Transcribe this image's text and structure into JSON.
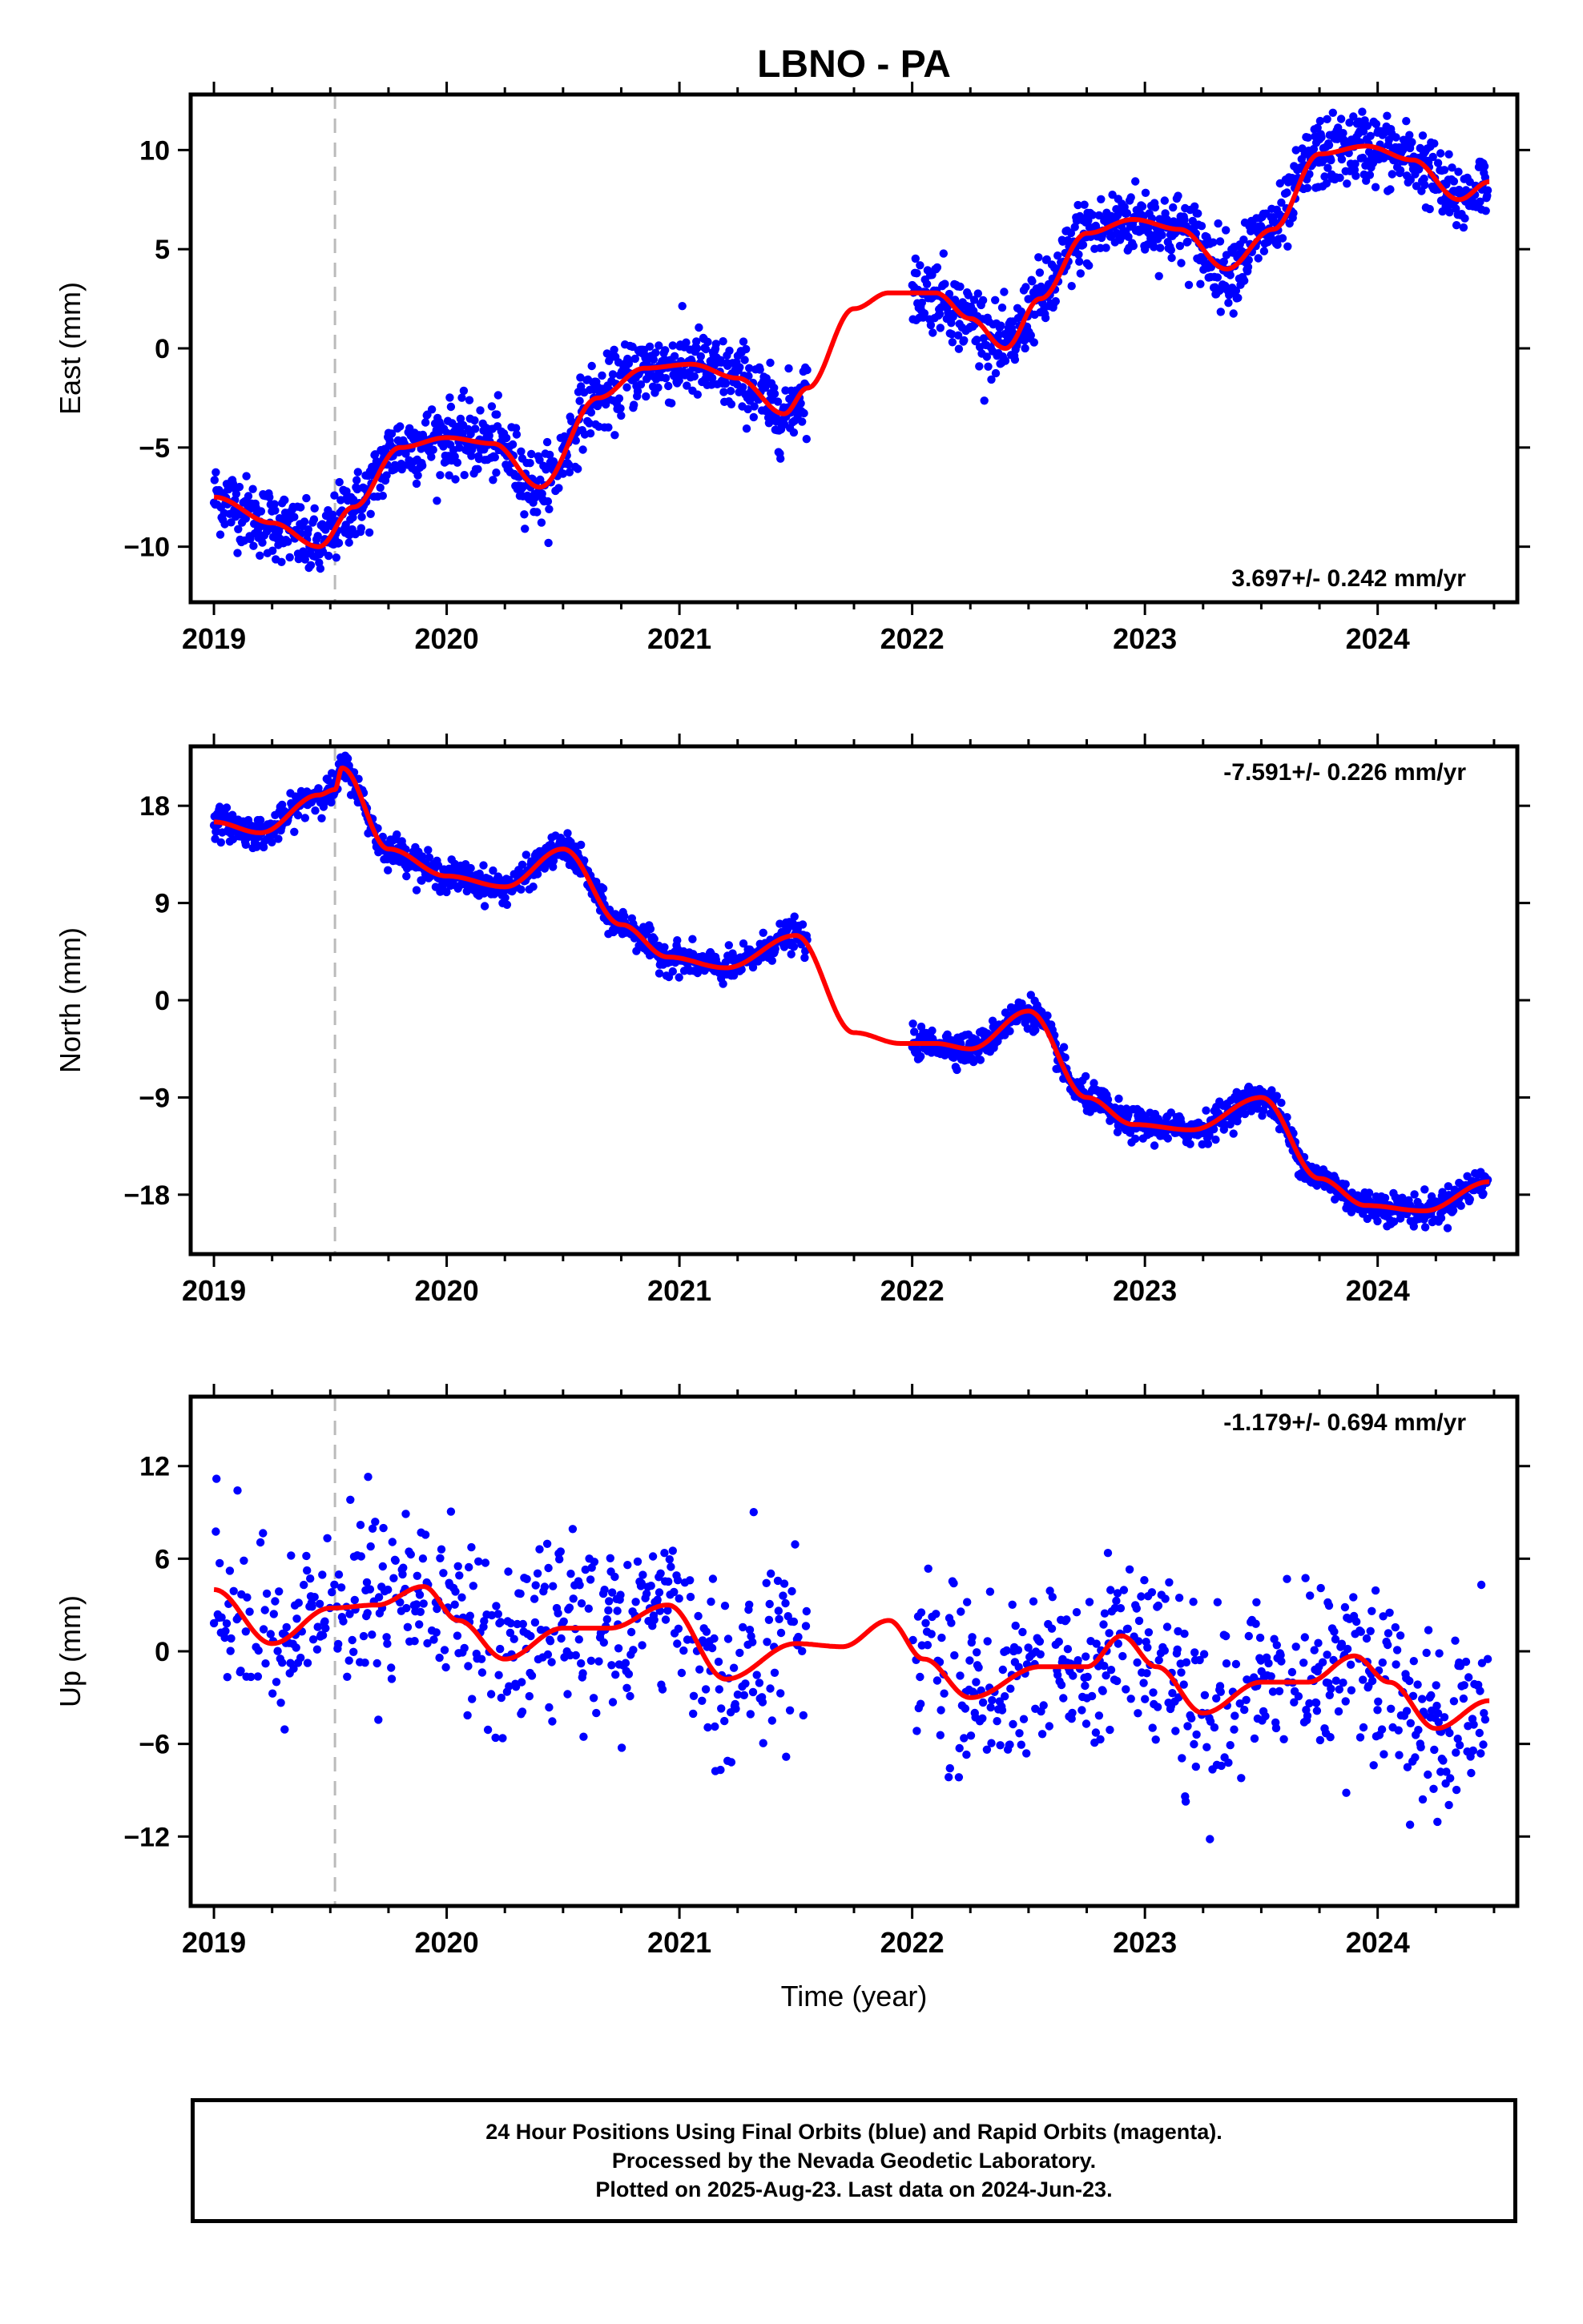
{
  "chart_data": {
    "title": "LBNO - PA",
    "xlabel": "Time (year)",
    "x_ticks": [
      "2019",
      "2020",
      "2021",
      "2022",
      "2023",
      "2024"
    ],
    "xlim": [
      2018.9,
      2024.6
    ],
    "reference_line_x": 2019.52,
    "colors": {
      "points": "#0000ff",
      "model": "#ff0000",
      "reference": "#bbbbbb"
    },
    "panels": [
      {
        "type": "scatter",
        "name": "east",
        "ylabel": "East (mm)",
        "ylim": [
          -12.8,
          12.8
        ],
        "y_ticks": [
          10,
          5,
          0,
          -5,
          -10
        ],
        "y_tick_labels": [
          "10",
          "5",
          "0",
          "−5",
          "−10"
        ],
        "rate_label": "3.697+/- 0.242 mm/yr",
        "rate_position": "bottom-right",
        "trend": {
          "rate": 3.697,
          "offset": -8.2,
          "amp1": 1.9,
          "phase1": 0.35,
          "amp2": 0.5,
          "phase2": 0.1,
          "noise": 0.9,
          "jump": 0
        },
        "model_x": [
          2019.0,
          2019.25,
          2019.45,
          2019.6,
          2019.8,
          2020.0,
          2020.2,
          2020.4,
          2020.65,
          2020.85,
          2021.05,
          2021.25,
          2021.45,
          2021.55,
          2021.75,
          2021.9,
          2022.1,
          2022.25,
          2022.4,
          2022.55,
          2022.75,
          2022.95,
          2023.15,
          2023.35,
          2023.55,
          2023.75,
          2023.95,
          2024.15,
          2024.35,
          2024.48
        ],
        "model_y": [
          -7.5,
          -8.8,
          -10.0,
          -8.0,
          -5.0,
          -4.5,
          -4.8,
          -7.0,
          -2.5,
          -1.0,
          -0.8,
          -1.5,
          -3.3,
          -2.0,
          2.0,
          2.8,
          2.8,
          1.5,
          0.0,
          2.5,
          5.8,
          6.5,
          6.0,
          4.0,
          6.0,
          9.8,
          10.2,
          9.5,
          7.5,
          8.4
        ]
      },
      {
        "type": "scatter",
        "name": "north",
        "ylabel": "North (mm)",
        "ylim": [
          -23.5,
          23.5
        ],
        "y_ticks": [
          18,
          9,
          0,
          -9,
          -18
        ],
        "y_tick_labels": [
          "18",
          "9",
          "0",
          "−9",
          "−18"
        ],
        "rate_label": "-7.591+/- 0.226 mm/yr",
        "rate_position": "top-right",
        "trend": {
          "rate": -7.591,
          "offset": 17.5,
          "amp1": 2.5,
          "phase1": 0.9,
          "amp2": 0.8,
          "phase2": 0.3,
          "noise": 0.7,
          "jump": 2.0
        },
        "model_x": [
          2019.0,
          2019.2,
          2019.45,
          2019.52,
          2019.55,
          2019.75,
          2020.0,
          2020.25,
          2020.5,
          2020.75,
          2020.95,
          2021.2,
          2021.5,
          2021.75,
          2021.95,
          2022.1,
          2022.25,
          2022.5,
          2022.75,
          2022.95,
          2023.2,
          2023.5,
          2023.75,
          2023.95,
          2024.2,
          2024.48
        ],
        "model_y": [
          16.5,
          15.5,
          19.0,
          19.5,
          21.5,
          14.0,
          11.5,
          10.5,
          14.0,
          7.0,
          4.0,
          3.0,
          6.0,
          -3.0,
          -4.0,
          -4.0,
          -4.5,
          -1.0,
          -9.0,
          -11.5,
          -12.0,
          -9.0,
          -16.5,
          -19.0,
          -19.5,
          -16.8
        ]
      },
      {
        "type": "scatter",
        "name": "up",
        "ylabel": "Up (mm)",
        "ylim": [
          -16.5,
          16.5
        ],
        "y_ticks": [
          12,
          6,
          0,
          -6,
          -12
        ],
        "y_tick_labels": [
          "12",
          "6",
          "0",
          "−6",
          "−12"
        ],
        "rate_label": "-1.179+/- 0.694 mm/yr",
        "rate_position": "top-right",
        "trend": {
          "rate": -1.179,
          "offset": 3.0,
          "amp1": 2.2,
          "phase1": 0.8,
          "amp2": 0.8,
          "phase2": 0.2,
          "noise": 2.8,
          "jump": 0
        },
        "model_x": [
          2019.0,
          2019.25,
          2019.5,
          2019.7,
          2019.9,
          2020.05,
          2020.25,
          2020.5,
          2020.7,
          2020.95,
          2021.2,
          2021.5,
          2021.7,
          2021.9,
          2022.05,
          2022.25,
          2022.55,
          2022.75,
          2022.9,
          2023.05,
          2023.25,
          2023.5,
          2023.7,
          2023.9,
          2024.05,
          2024.25,
          2024.48
        ],
        "model_y": [
          4.0,
          0.5,
          2.8,
          3.0,
          4.2,
          2.0,
          -0.5,
          1.5,
          1.5,
          3.0,
          -1.8,
          0.5,
          0.3,
          2.0,
          -0.5,
          -3.0,
          -1.0,
          -1.0,
          1.0,
          -1.0,
          -4.0,
          -2.0,
          -2.0,
          -0.3,
          -2.0,
          -5.0,
          -3.2
        ]
      }
    ]
  },
  "footer": {
    "line1": "24 Hour Positions Using Final Orbits (blue) and Rapid Orbits (magenta).",
    "line2": "Processed by the Nevada Geodetic Laboratory.",
    "line3": "Plotted on 2025-Aug-23. Last data on 2024-Jun-23."
  }
}
